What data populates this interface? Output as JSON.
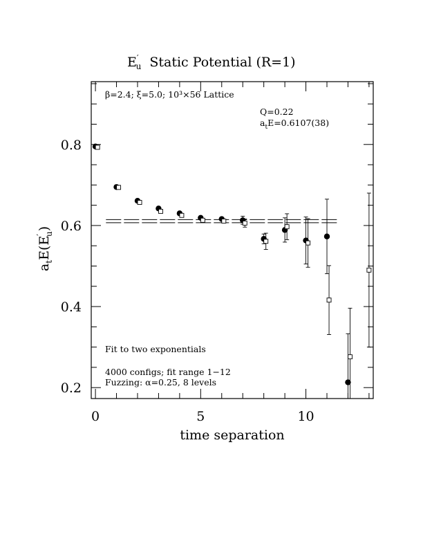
{
  "chart_data": {
    "type": "scatter",
    "title": {
      "main": "E",
      "sup": "′",
      "sub": "u",
      "rest": "Static Potential (R=1)"
    },
    "xlabel": "time separation",
    "ylabel": {
      "pre": "a",
      "sub1": "t",
      "mid": "E(E",
      "sup": "′",
      "sub2": "u",
      "post": ")"
    },
    "xlim": [
      -0.2,
      13.2
    ],
    "ylim": [
      0.173,
      0.955
    ],
    "x_ticks": [
      0,
      5,
      10
    ],
    "x_tick_labels": [
      "0",
      "5",
      "10"
    ],
    "y_ticks": [
      0.2,
      0.4,
      0.6,
      0.8
    ],
    "y_tick_labels": [
      "0.2",
      "0.4",
      "0.6",
      "0.8"
    ],
    "grid": false,
    "series": [
      {
        "marker": "filled-circle",
        "x": [
          0,
          1,
          2,
          3,
          4,
          5,
          6,
          7,
          8,
          9,
          10,
          11,
          12
        ],
        "y": [
          0.795,
          0.695,
          0.661,
          0.642,
          0.63,
          0.619,
          0.616,
          0.613,
          0.567,
          0.589,
          0.563,
          0.573,
          0.213
        ],
        "err": [
          0,
          0,
          0,
          0,
          0,
          0,
          0,
          0.01,
          0.012,
          0.03,
          0.058,
          0.092,
          0.12
        ]
      },
      {
        "marker": "open-square",
        "x": [
          0.1,
          1.1,
          2.1,
          3.1,
          4.1,
          5.1,
          6.1,
          7.1,
          8.1,
          9.1,
          10.1,
          11.1,
          12.1,
          13.0
        ],
        "y": [
          0.793,
          0.694,
          0.657,
          0.635,
          0.625,
          0.613,
          0.611,
          0.606,
          0.561,
          0.597,
          0.557,
          0.416,
          0.276,
          0.49
        ],
        "err": [
          0,
          0,
          0,
          0,
          0,
          0,
          0,
          0.01,
          0.02,
          0.032,
          0.06,
          0.085,
          0.12,
          0.19
        ]
      }
    ],
    "fit": {
      "x_range": [
        0.5,
        11.5
      ],
      "center": 0.6107,
      "error": 0.0038
    },
    "annotations": {
      "lattice": "β=2.4; ξ=5.0; 10³×56 Lattice",
      "q": "Q=0.22",
      "energy_pre": "a",
      "energy_sub": "t",
      "energy_post": "E=0.6107(38)",
      "method": "Fit to two exponentials",
      "configs": "4000 configs; fit range 1−12",
      "fuzzing": "Fuzzing: α=0.25, 8 levels"
    }
  }
}
